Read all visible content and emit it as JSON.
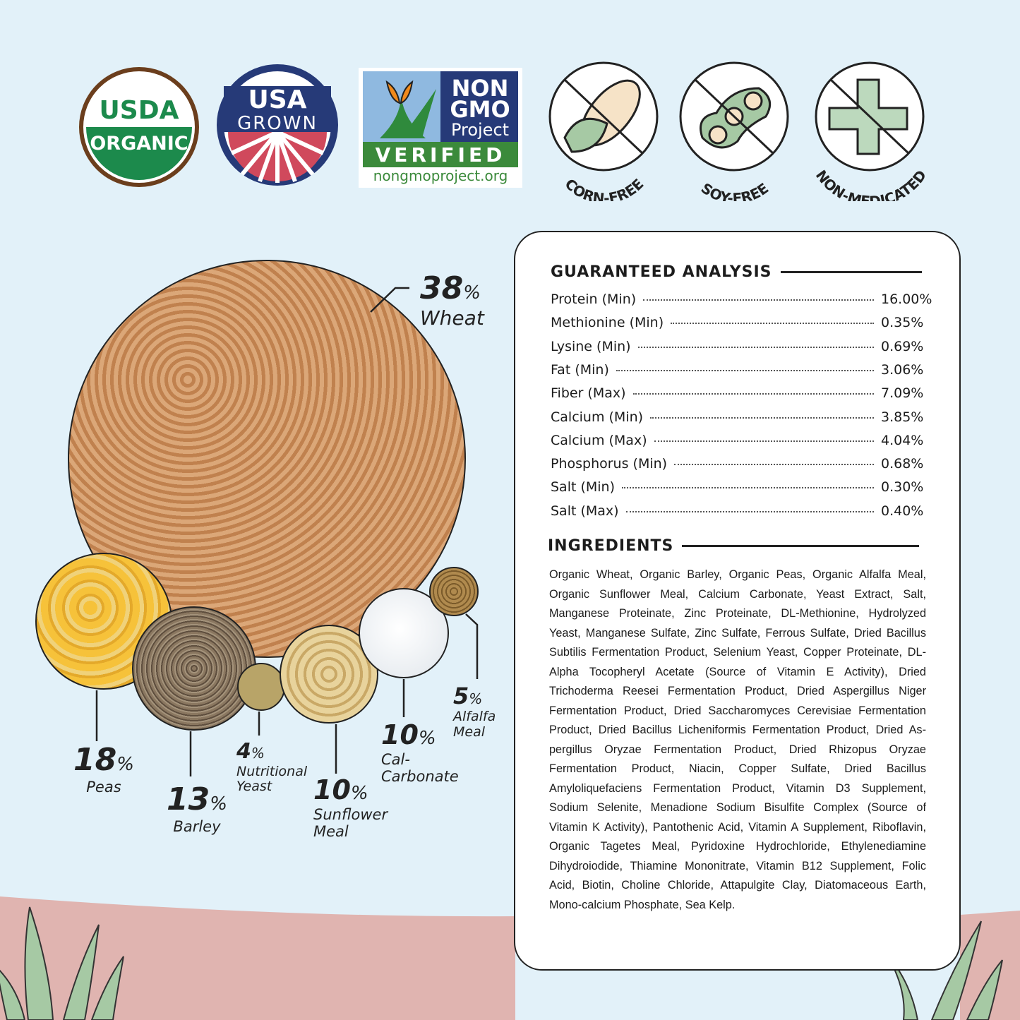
{
  "badges": {
    "usda": {
      "line1": "USDA",
      "line2": "ORGANIC"
    },
    "usa_grown": {
      "line1": "USA",
      "line2": "GROWN"
    },
    "non_gmo": {
      "line1": "NON",
      "line2": "GMO",
      "line3": "Project",
      "verified": "VERIFIED",
      "url": "nongmoproject.org"
    },
    "corn_free": "CORN-FREE",
    "soy_free": "SOY-FREE",
    "non_medicated": "NON-MEDICATED"
  },
  "colors": {
    "background": "#e2f1f9",
    "ground": "#e0b4b0",
    "grass": "#a6c9a4",
    "usda_green": "#1c8a4c",
    "usda_brown": "#6b3e1d",
    "usa_navy": "#263a78",
    "usa_red": "#d0495c",
    "icon_green": "#bcd9bd"
  },
  "composition": [
    {
      "percent": "38",
      "unit": "%",
      "name": "Wheat"
    },
    {
      "percent": "18",
      "unit": "%",
      "name": "Peas"
    },
    {
      "percent": "13",
      "unit": "%",
      "name": "Barley"
    },
    {
      "percent": "4",
      "unit": "%",
      "name": "Nutritional Yeast"
    },
    {
      "percent": "10",
      "unit": "%",
      "name": "Sunflower Meal"
    },
    {
      "percent": "10",
      "unit": "%",
      "name": "Cal-Carbonate"
    },
    {
      "percent": "5",
      "unit": "%",
      "name": "Alfalfa Meal"
    }
  ],
  "analysis": {
    "title": "GUARANTEED ANALYSIS",
    "rows": [
      {
        "label": "Protein (Min)",
        "value": "16.00%"
      },
      {
        "label": "Methionine (Min)",
        "value": "0.35%"
      },
      {
        "label": "Lysine (Min)",
        "value": "0.69%"
      },
      {
        "label": "Fat (Min)",
        "value": "3.06%"
      },
      {
        "label": "Fiber (Max)",
        "value": "7.09%"
      },
      {
        "label": "Calcium (Min)",
        "value": "3.85%"
      },
      {
        "label": "Calcium (Max)",
        "value": "4.04%"
      },
      {
        "label": "Phosphorus (Min)",
        "value": "0.68%"
      },
      {
        "label": "Salt (Min)",
        "value": "0.30%"
      },
      {
        "label": "Salt (Max)",
        "value": "0.40%"
      }
    ]
  },
  "ingredients": {
    "title": "INGREDIENTS",
    "text": "Organic Wheat, Organic Barley, Organic Peas, Organic Alfalfa Meal, Organic Sunflower Meal, Calcium Carbonate, Yeast Ex­tract, Salt, Manganese Proteinate, Zinc Proteinate, DL-Methi­onine, Hydrolyzed Yeast, Manganese Sulfate, Zinc Sulfate, Fer­rous Sulfate, Dried Bacillus Subtilis Fermentation Product, Se­lenium Yeast, Copper Proteinate, DL-Alpha Tocopheryl Acetate (Source of Vitamin E Activity), Dried Trichoderma Reesei Fer­mentation Product, Dried Aspergillus Niger Fermentation Prod­uct, Dried Saccharomyces Cerevisiae Fermentation Product, Dried Bacillus Licheniformis Fermentation Product, Dried As­pergillus Oryzae Fermentation Product, Dried Rhizopus Oryzae Fermentation Product, Niacin, Copper Sulfate, Dried Bacillus Amyloliquefaciens Fermentation Product, Vitamin D3 Supple­ment, Sodium Selenite, Menadione Sodium Bisulfite Complex (Source of Vitamin K Activity), Pantothenic Acid, Vitamin A Sup­plement, Riboflavin, Organic Tagetes Meal, Pyridoxine Hydro­chloride, Ethylenediamine Dihydroiodide, Thiamine Mononi­trate, Vitamin B12 Supplement, Folic Acid, Biotin, Choline Chlo­ride, Attapulgite Clay, Diatomaceous Earth, Mono-calcium Phosphate, Sea Kelp."
  }
}
